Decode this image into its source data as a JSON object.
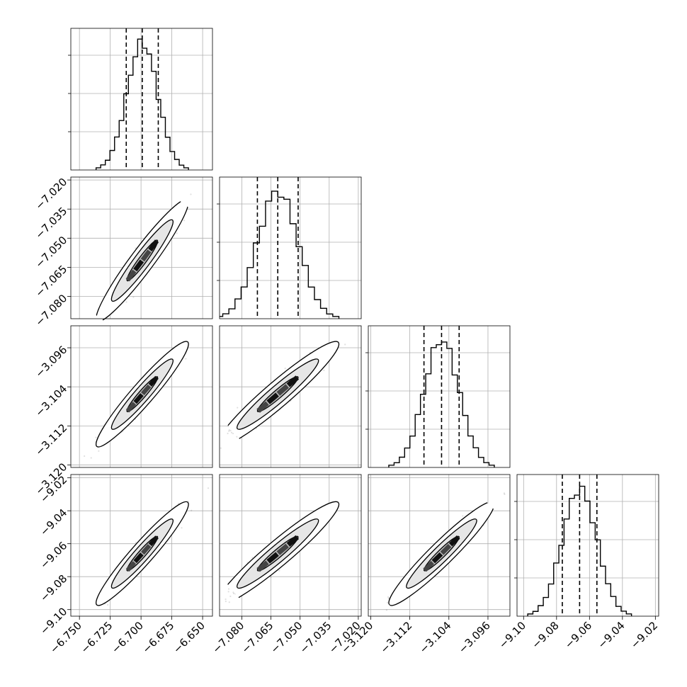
{
  "chart_data": {
    "type": "corner",
    "parameters": [
      {
        "mean": -6.699,
        "sd": 0.0125,
        "range": [
          -6.757,
          -6.642
        ],
        "ticks": [
          -6.75,
          -6.725,
          -6.7,
          -6.675,
          -6.65
        ],
        "tick_labels": [
          "−6.750",
          "−6.725",
          "−6.700",
          "−6.675",
          "−6.650"
        ],
        "quantiles": [
          -6.712,
          -6.699,
          -6.686
        ]
      },
      {
        "mean": -7.0615,
        "sd": 0.0105,
        "range": [
          -7.0915,
          -7.0185
        ],
        "ticks": [
          -7.08,
          -7.065,
          -7.05,
          -7.035,
          -7.02
        ],
        "tick_labels": [
          "−7.080",
          "−7.065",
          "−7.050",
          "−7.035",
          "−7.020"
        ],
        "quantiles": [
          -7.072,
          -7.0615,
          -7.051
        ]
      },
      {
        "mean": -3.1055,
        "sd": 0.0036,
        "range": [
          -3.1205,
          -3.0915
        ],
        "ticks": [
          -3.12,
          -3.112,
          -3.104,
          -3.096
        ],
        "tick_labels": [
          "−3.120",
          "−3.112",
          "−3.104",
          "−3.096"
        ],
        "quantiles": [
          -3.1091,
          -3.1055,
          -3.1019
        ]
      },
      {
        "mean": -9.066,
        "sd": 0.0105,
        "range": [
          -9.104,
          -9.018
        ],
        "ticks": [
          -9.1,
          -9.08,
          -9.06,
          -9.04,
          -9.02
        ],
        "tick_labels": [
          "−9.10",
          "−9.08",
          "−9.06",
          "−9.04",
          "−9.02"
        ],
        "quantiles": [
          -9.0765,
          -9.066,
          -9.0555
        ]
      }
    ],
    "correlation": 0.95,
    "histogram_bins": 20,
    "contour_levels_sigma": [
      0.5,
      1.0,
      1.5
    ],
    "grid": true,
    "colors": {
      "ink": "#000000",
      "grid": "#b0b0b0",
      "background": "#ffffff"
    }
  }
}
